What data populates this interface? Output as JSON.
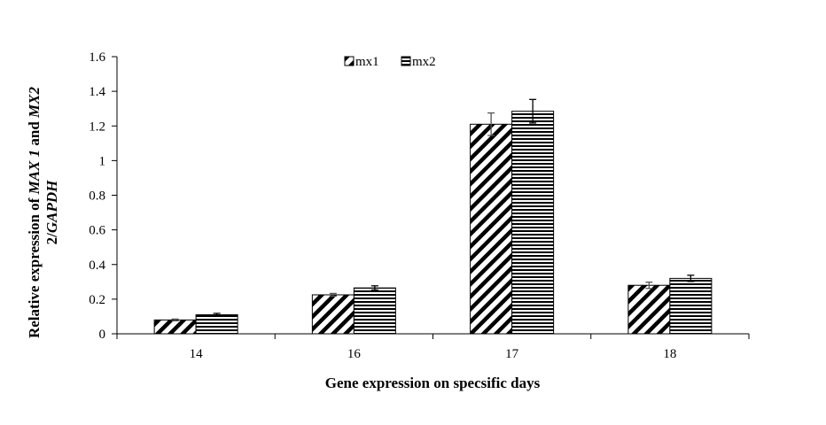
{
  "chart_data": {
    "type": "bar",
    "xlabel": "Gene expression on specsific days",
    "ylabel_line1_prefix": "Relative expression of ",
    "ylabel_line1_gene1": "MAX 1",
    "ylabel_line1_mid": " and ",
    "ylabel_line1_gene2": "MX2",
    "ylabel_line2_prefix": "2/",
    "ylabel_line2_gene": "GAPDH",
    "categories": [
      "14",
      "16",
      "17",
      "18"
    ],
    "ylim": [
      0,
      1.6
    ],
    "yticks": [
      0,
      0.2,
      0.4,
      0.6,
      0.8,
      1,
      1.2,
      1.4,
      1.6
    ],
    "ytick_labels": [
      "0",
      "0.2",
      "0.4",
      "0.6",
      "0.8",
      "1",
      "1.2",
      "1.4",
      "1.6"
    ],
    "legend_position": "top-center",
    "grid": false,
    "series": [
      {
        "name": "mx1",
        "pattern": "diagonal-stripes",
        "values": [
          0.08,
          0.225,
          1.21,
          0.28
        ],
        "errors": [
          0.005,
          0.008,
          0.065,
          0.018
        ]
      },
      {
        "name": "mx2",
        "pattern": "horizontal-stripes",
        "values": [
          0.11,
          0.265,
          1.285,
          0.32
        ],
        "errors": [
          0.008,
          0.012,
          0.068,
          0.018
        ]
      }
    ]
  }
}
